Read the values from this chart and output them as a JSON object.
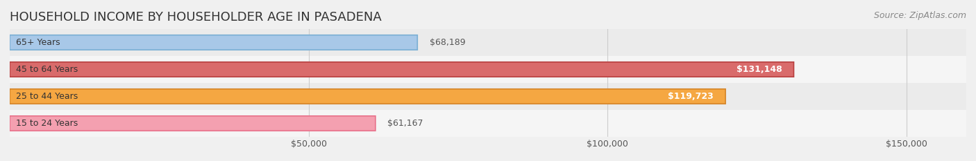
{
  "title": "HOUSEHOLD INCOME BY HOUSEHOLDER AGE IN PASADENA",
  "source": "Source: ZipAtlas.com",
  "categories": [
    "15 to 24 Years",
    "25 to 44 Years",
    "45 to 64 Years",
    "65+ Years"
  ],
  "values": [
    61167,
    119723,
    131148,
    68189
  ],
  "bar_colors": [
    "#f4a0b0",
    "#f5a742",
    "#d96b6b",
    "#a8c8e8"
  ],
  "bar_edge_colors": [
    "#e8708a",
    "#d4852a",
    "#b84040",
    "#7aafd4"
  ],
  "value_labels": [
    "$61,167",
    "$119,723",
    "$131,148",
    "$68,189"
  ],
  "label_inside": [
    false,
    true,
    true,
    false
  ],
  "xmin": 0,
  "xmax": 160000,
  "xticks": [
    50000,
    100000,
    150000
  ],
  "xticklabels": [
    "$50,000",
    "$100,000",
    "$150,000"
  ],
  "title_fontsize": 13,
  "source_fontsize": 9,
  "tick_fontsize": 9,
  "label_fontsize": 9,
  "cat_fontsize": 9,
  "row_bg_colors": [
    "#f5f5f5",
    "#ebebeb",
    "#f5f5f5",
    "#ebebeb"
  ],
  "bar_height": 0.55,
  "background_color": "#f0f0f0"
}
